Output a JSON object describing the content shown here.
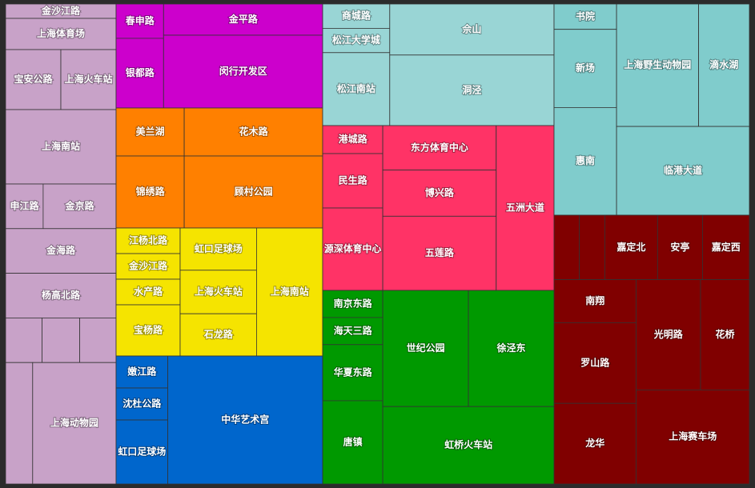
{
  "chart_data": {
    "type": "treemap",
    "title": "",
    "groups": [
      {
        "color": "#c8a2c8",
        "items": [
          {
            "label": "金沙江路",
            "value": 14
          },
          {
            "label": "上海体育场",
            "value": 24
          },
          {
            "label": "宝安公路",
            "value": 36
          },
          {
            "label": "上海火车站",
            "value": 36
          },
          {
            "label": "上海南站",
            "value": 74
          },
          {
            "label": "申江路",
            "value": 30
          },
          {
            "label": "金京路",
            "value": 50
          },
          {
            "label": "金海路",
            "value": 75
          },
          {
            "label": "杨高北路",
            "value": 75
          },
          {
            "label": "",
            "value": 18
          },
          {
            "label": "",
            "value": 18
          },
          {
            "label": "",
            "value": 18
          },
          {
            "label": "",
            "value": 25
          },
          {
            "label": "上海动物园",
            "value": 108
          }
        ]
      },
      {
        "color": "#cc00cc",
        "items": [
          {
            "label": "春申路",
            "value": 12
          },
          {
            "label": "银都路",
            "value": 23
          },
          {
            "label": "金平路",
            "value": 26
          },
          {
            "label": "闵行开发区",
            "value": 61
          }
        ]
      },
      {
        "color": "#ff8000",
        "items": [
          {
            "label": "美兰湖",
            "value": 23
          },
          {
            "label": "花木路",
            "value": 49
          },
          {
            "label": "锦绣路",
            "value": 23
          },
          {
            "label": "顾村公园",
            "value": 49
          }
        ]
      },
      {
        "color": "#f5e400",
        "items": [
          {
            "label": "江杨北路",
            "value": 17
          },
          {
            "label": "金沙江路",
            "value": 17
          },
          {
            "label": "水产路",
            "value": 17
          },
          {
            "label": "宝杨路",
            "value": 17
          },
          {
            "label": "虹口足球场",
            "value": 22
          },
          {
            "label": "上海火车站",
            "value": 23
          },
          {
            "label": "石龙路",
            "value": 22
          },
          {
            "label": "上海南站",
            "value": 42
          }
        ]
      },
      {
        "color": "#0066cc",
        "items": [
          {
            "label": "嫩江路",
            "value": 15
          },
          {
            "label": "沈杜公路",
            "value": 15
          },
          {
            "label": "虹口足球场",
            "value": 21
          },
          {
            "label": "中华艺术宫",
            "value": 94
          }
        ]
      },
      {
        "color": "#99d5d5",
        "items": [
          {
            "label": "商城路",
            "value": 10
          },
          {
            "label": "松江大学城",
            "value": 10
          },
          {
            "label": "松江南站",
            "value": 30
          },
          {
            "label": "佘山",
            "value": 40
          },
          {
            "label": "洞泾",
            "value": 60
          }
        ]
      },
      {
        "color": "#ff3366",
        "items": [
          {
            "label": "港城路",
            "value": 15
          },
          {
            "label": "民生路",
            "value": 30
          },
          {
            "label": "源深体育中心",
            "value": 40
          },
          {
            "label": "东方体育中心",
            "value": 33
          },
          {
            "label": "博兴路",
            "value": 33
          },
          {
            "label": "五莲路",
            "value": 54
          },
          {
            "label": "五洲大道",
            "value": 71
          }
        ]
      },
      {
        "color": "#009900",
        "items": [
          {
            "label": "南京东路",
            "value": 15
          },
          {
            "label": "海天三路",
            "value": 15
          },
          {
            "label": "华夏东路",
            "value": 30
          },
          {
            "label": "唐镇",
            "value": 46
          },
          {
            "label": "世纪公园",
            "value": 58
          },
          {
            "label": "徐泾东",
            "value": 58
          },
          {
            "label": "虹桥火车站",
            "value": 74
          }
        ]
      },
      {
        "color": "#80cccc",
        "items": [
          {
            "label": "书院",
            "value": 13
          },
          {
            "label": "新场",
            "value": 44
          },
          {
            "label": "惠南",
            "value": 56
          },
          {
            "label": "上海野生动物园",
            "value": 52
          },
          {
            "label": "滴水湖",
            "value": 30
          },
          {
            "label": "临港大道",
            "value": 90
          }
        ]
      },
      {
        "color": "#800000",
        "items": [
          {
            "label": "",
            "value": 13
          },
          {
            "label": "",
            "value": 13
          },
          {
            "label": "",
            "value": 13
          },
          {
            "label": "嘉定北",
            "value": 28
          },
          {
            "label": "安亭",
            "value": 28
          },
          {
            "label": "嘉定西",
            "value": 28
          },
          {
            "label": "南翔",
            "value": 28
          },
          {
            "label": "罗山路",
            "value": 28
          },
          {
            "label": "光明路",
            "value": 50
          },
          {
            "label": "花桥",
            "value": 40
          },
          {
            "label": "龙华",
            "value": 35
          },
          {
            "label": "上海赛车场",
            "value": 70
          }
        ]
      }
    ]
  }
}
